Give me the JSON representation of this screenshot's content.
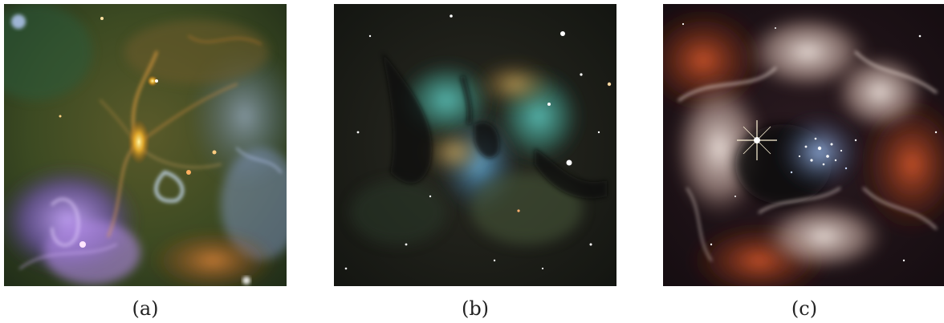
{
  "figure": {
    "panels": [
      {
        "caption": "(a)",
        "picture": "nebula-infrared-filaments"
      },
      {
        "caption": "(b)",
        "picture": "nebula-narrowband-butterfly"
      },
      {
        "caption": "(c)",
        "picture": "nebula-tarantula-star-cluster"
      }
    ]
  },
  "colors": {
    "background": "#ffffff",
    "caption_text": "#222222"
  }
}
